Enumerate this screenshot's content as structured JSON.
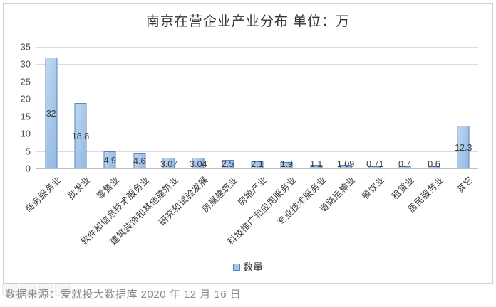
{
  "title": "南京在营企业产业分布 单位：万",
  "legend": {
    "label": "数量"
  },
  "footer": {
    "source": "数据来源：爱就投大数据库 2020 年 12 月 16 日"
  },
  "colors": {
    "bar_fill": "#a9c7e9",
    "bar_border": "#5585c2",
    "gridline": "#dcdcdc",
    "axis": "#bfbfbf",
    "text": "#3a3a3a",
    "footer_text": "#8a8a8a"
  },
  "chart_data": {
    "type": "bar",
    "title": "南京在营企业产业分布 单位：万",
    "unit": "万",
    "series_name": "数量",
    "categories": [
      "商务服务业",
      "批发业",
      "零售业",
      "软件和信息技术服务业",
      "建筑装饰和其他建筑业",
      "研究和试验发展",
      "房屋建筑业",
      "房地产业",
      "科技推广和应用服务业",
      "专业技术服务业",
      "道路运输业",
      "餐饮业",
      "租赁业",
      "居民服务业",
      "其它"
    ],
    "values": [
      32,
      18.8,
      4.9,
      4.6,
      3.07,
      3.04,
      2.5,
      2.1,
      1.9,
      1.1,
      1.09,
      0.71,
      0.7,
      0.6,
      12.3
    ],
    "value_labels": [
      "32",
      "18.8",
      "4.9",
      "4.6",
      "3.07",
      "3.04",
      "2.5",
      "2.1",
      "1.9",
      "1.1",
      "1.09",
      "0.71",
      "0.7",
      "0.6",
      "12.3"
    ],
    "xlabel": "",
    "ylabel": "",
    "ylim": [
      0,
      35
    ],
    "yticks": [
      0,
      5,
      10,
      15,
      20,
      25,
      30,
      35
    ],
    "grid": true,
    "legend_position": "bottom"
  }
}
